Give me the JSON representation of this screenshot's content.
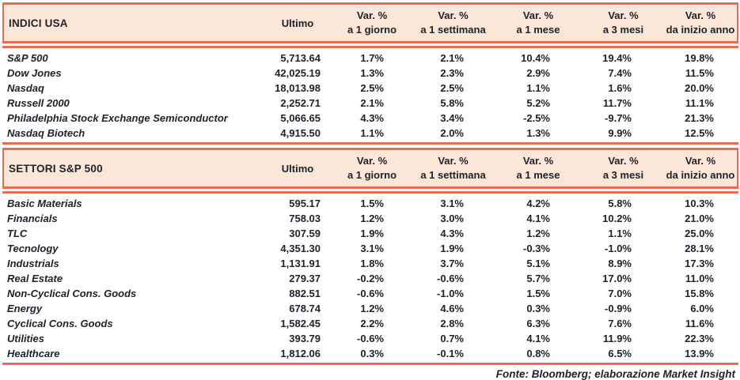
{
  "colors": {
    "accent_line": "#EC6A50",
    "header_band_bg": "#FBE7D8",
    "text": "#20222C"
  },
  "columns": {
    "ultimo_label": "Ultimo",
    "var_label": "Var. %",
    "periods": [
      "a 1 giorno",
      "a 1 settimana",
      "a 1 mese",
      "a 3 mesi",
      "da inizio anno"
    ]
  },
  "tables": [
    {
      "title": "INDICI USA",
      "rows": [
        {
          "name": "S&P 500",
          "ultimo": "5,713.64",
          "vars": [
            "1.7%",
            "2.1%",
            "10.4%",
            "19.4%",
            "19.8%"
          ]
        },
        {
          "name": "Dow Jones",
          "ultimo": "42,025.19",
          "vars": [
            "1.3%",
            "2.3%",
            "2.9%",
            "7.4%",
            "11.5%"
          ]
        },
        {
          "name": "Nasdaq",
          "ultimo": "18,013.98",
          "vars": [
            "2.5%",
            "2.5%",
            "1.1%",
            "1.6%",
            "20.0%"
          ]
        },
        {
          "name": "Russell 2000",
          "ultimo": "2,252.71",
          "vars": [
            "2.1%",
            "5.8%",
            "5.2%",
            "11.7%",
            "11.1%"
          ]
        },
        {
          "name": "Philadelphia Stock Exchange Semiconductor",
          "ultimo": "5,066.65",
          "vars": [
            "4.3%",
            "3.4%",
            "-2.5%",
            "-9.7%",
            "21.3%"
          ]
        },
        {
          "name": "Nasdaq Biotech",
          "ultimo": "4,915.50",
          "vars": [
            "1.1%",
            "2.0%",
            "1.3%",
            "9.9%",
            "12.5%"
          ]
        }
      ]
    },
    {
      "title": "SETTORI S&P 500",
      "rows": [
        {
          "name": "Basic Materials",
          "ultimo": "595.17",
          "vars": [
            "1.5%",
            "3.1%",
            "4.2%",
            "5.8%",
            "10.3%"
          ]
        },
        {
          "name": "Financials",
          "ultimo": "758.03",
          "vars": [
            "1.2%",
            "3.0%",
            "4.1%",
            "10.2%",
            "21.0%"
          ]
        },
        {
          "name": "TLC",
          "ultimo": "307.59",
          "vars": [
            "1.9%",
            "4.3%",
            "1.2%",
            "1.1%",
            "25.0%"
          ]
        },
        {
          "name": "Tecnology",
          "ultimo": "4,351.30",
          "vars": [
            "3.1%",
            "1.9%",
            "-0.3%",
            "-1.0%",
            "28.1%"
          ]
        },
        {
          "name": "Industrials",
          "ultimo": "1,131.91",
          "vars": [
            "1.8%",
            "3.7%",
            "5.1%",
            "8.9%",
            "17.3%"
          ]
        },
        {
          "name": "Real Estate",
          "ultimo": "279.37",
          "vars": [
            "-0.2%",
            "-0.6%",
            "5.7%",
            "17.0%",
            "11.0%"
          ]
        },
        {
          "name": "Non-Cyclical Cons. Goods",
          "ultimo": "882.51",
          "vars": [
            "-0.6%",
            "-1.0%",
            "1.5%",
            "7.0%",
            "15.8%"
          ]
        },
        {
          "name": "Energy",
          "ultimo": "678.74",
          "vars": [
            "1.2%",
            "4.6%",
            "0.3%",
            "-0.9%",
            "6.0%"
          ]
        },
        {
          "name": "Cyclical Cons. Goods",
          "ultimo": "1,582.45",
          "vars": [
            "2.2%",
            "2.8%",
            "6.3%",
            "7.6%",
            "11.6%"
          ]
        },
        {
          "name": "Utilities",
          "ultimo": "393.79",
          "vars": [
            "-0.6%",
            "0.7%",
            "4.1%",
            "11.9%",
            "22.3%"
          ]
        },
        {
          "name": "Healthcare",
          "ultimo": "1,812.06",
          "vars": [
            "0.3%",
            "-0.1%",
            "0.8%",
            "6.5%",
            "13.9%"
          ]
        }
      ]
    }
  ],
  "footer": {
    "source_text": "Fonte: Bloomberg; elaborazione Market Insight"
  }
}
